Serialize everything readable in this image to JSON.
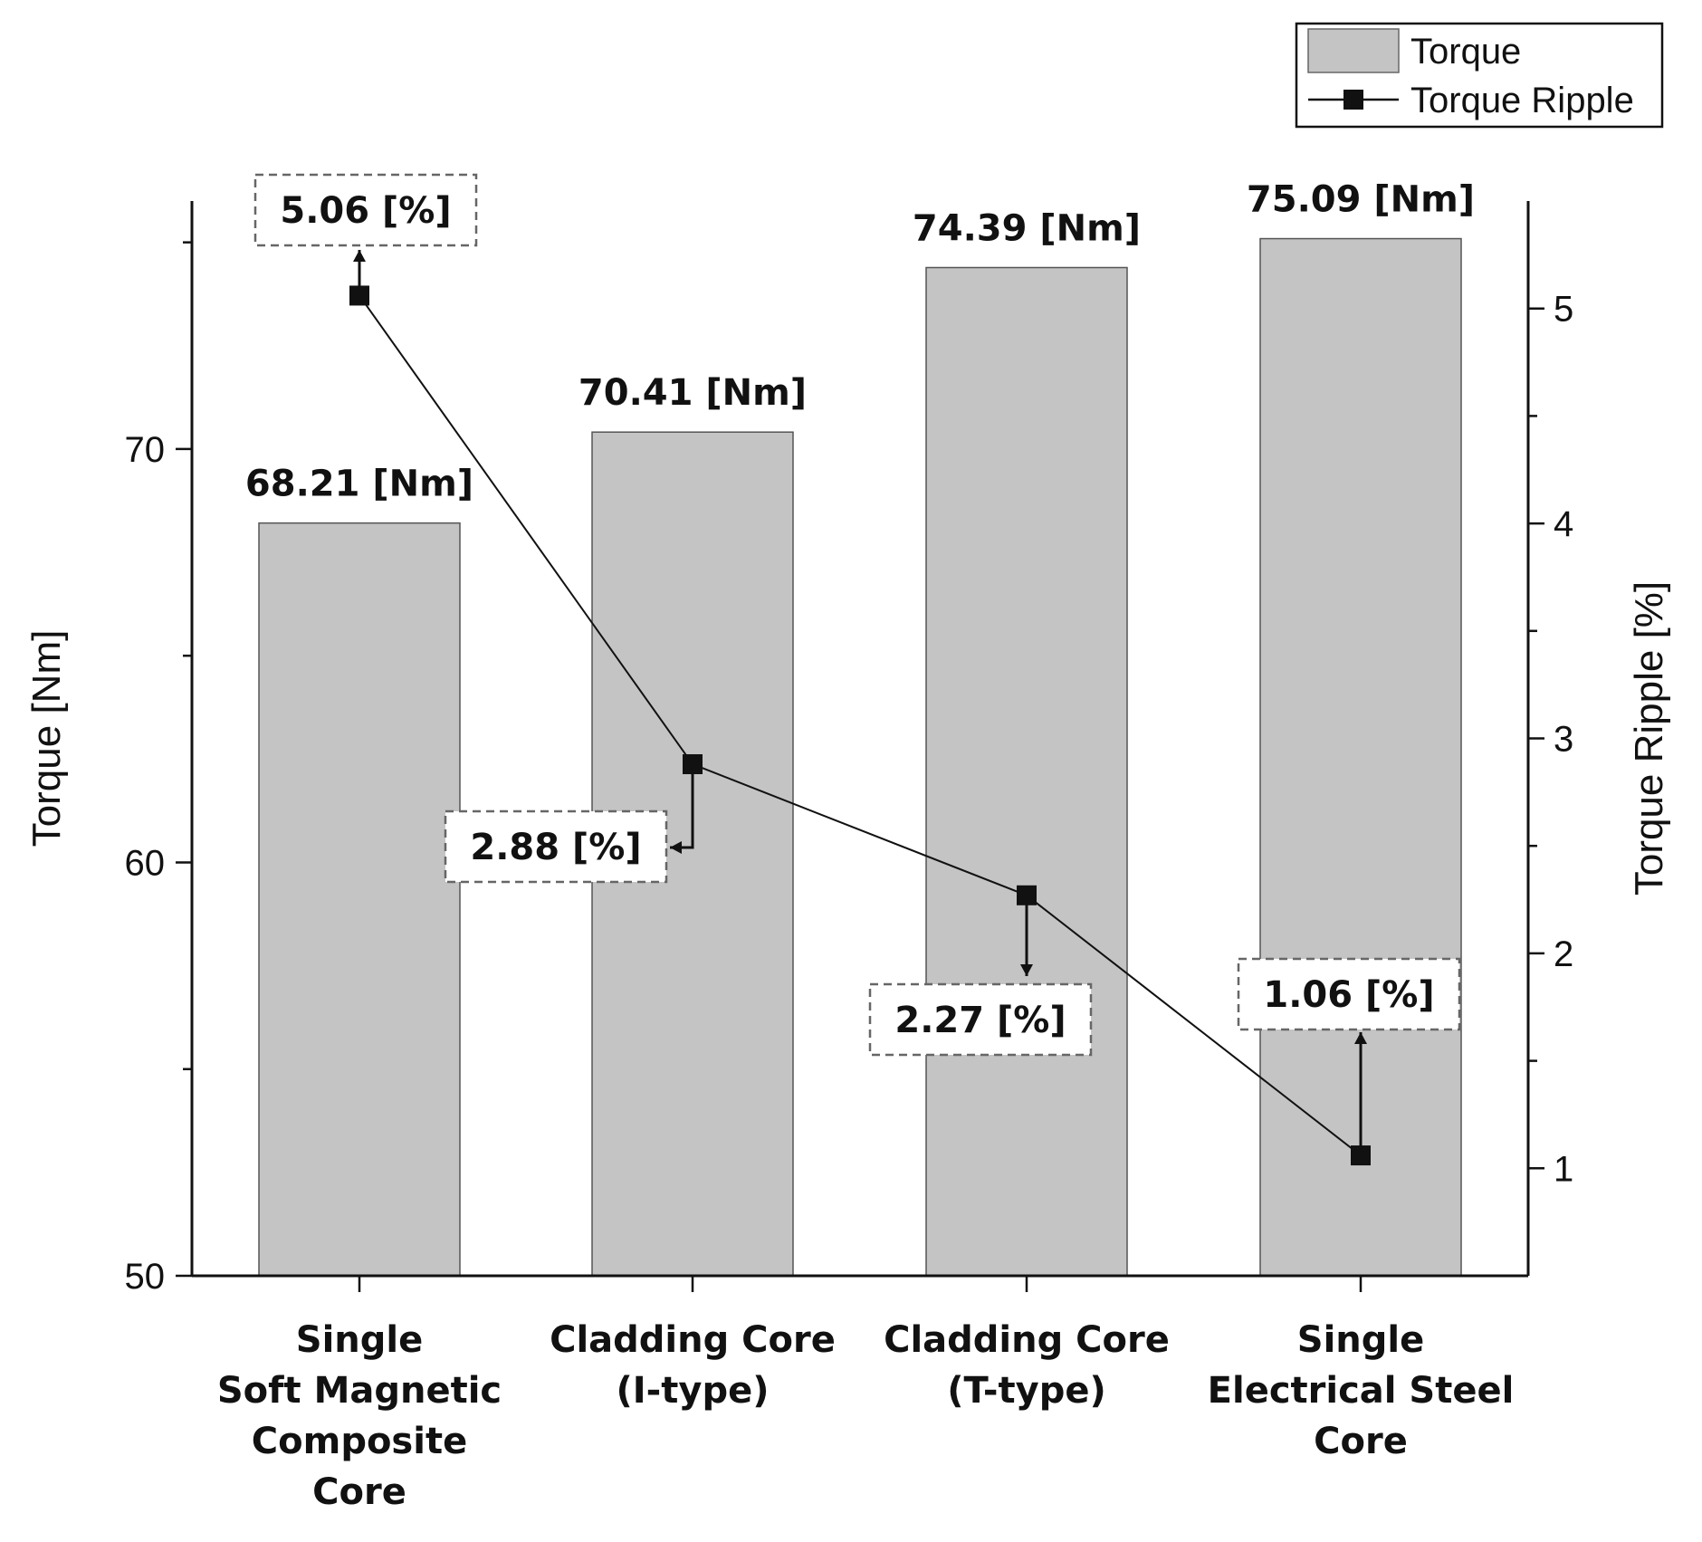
{
  "chart_data": {
    "type": "bar",
    "title": "",
    "categories": [
      [
        "Single",
        "Soft Magnetic",
        "Composite",
        "Core"
      ],
      [
        "Cladding Core",
        "(I-type)"
      ],
      [
        "Cladding Core",
        "(T-type)"
      ],
      [
        "Single",
        "Electrical Steel",
        "Core"
      ]
    ],
    "series": [
      {
        "name": "Torque",
        "type": "bar",
        "axis": "left",
        "values": [
          68.21,
          70.41,
          74.39,
          75.09
        ],
        "labels": [
          "68.21 [Nm]",
          "70.41 [Nm]",
          "74.39 [Nm]",
          "75.09 [Nm]"
        ],
        "color": "#c4c4c4"
      },
      {
        "name": "Torque Ripple",
        "type": "line",
        "axis": "right",
        "values": [
          5.06,
          2.88,
          2.27,
          1.06
        ],
        "labels": [
          "5.06 [%]",
          "2.88 [%]",
          "2.27 [%]",
          "1.06 [%]"
        ],
        "color": "#111111",
        "marker": "square"
      }
    ],
    "ylabel": "Torque [Nm]",
    "ylim": [
      50,
      76
    ],
    "yticks": [
      50,
      60,
      70
    ],
    "y2label": "Torque Ripple [%]",
    "y2lim": [
      0.5,
      5.5
    ],
    "y2ticks": [
      1,
      2,
      3,
      4,
      5
    ],
    "legend": {
      "position": "top-right",
      "entries": [
        "Torque",
        "Torque Ripple"
      ]
    },
    "grid": false
  }
}
